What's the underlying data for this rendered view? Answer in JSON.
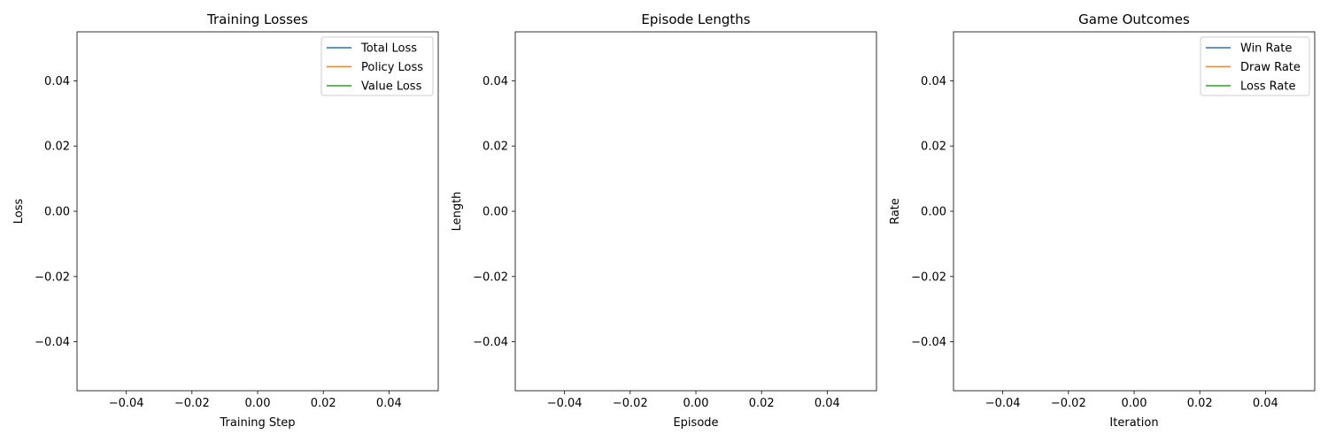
{
  "chart_data": [
    {
      "type": "line",
      "title": "Training Losses",
      "xlabel": "Training Step",
      "ylabel": "Loss",
      "xlim": [
        -0.055,
        0.055
      ],
      "ylim": [
        -0.055,
        0.055
      ],
      "xticks": [
        -0.04,
        -0.02,
        0.0,
        0.02,
        0.04
      ],
      "yticks": [
        -0.04,
        -0.02,
        0.0,
        0.02,
        0.04
      ],
      "xtick_labels": [
        "−0.04",
        "−0.02",
        "0.00",
        "0.02",
        "0.04"
      ],
      "ytick_labels": [
        "−0.04",
        "−0.02",
        "0.00",
        "0.02",
        "0.04"
      ],
      "grid": false,
      "legend_position": "top-right",
      "series": [
        {
          "name": "Total Loss",
          "color": "#1f77b4",
          "x": [],
          "y": []
        },
        {
          "name": "Policy Loss",
          "color": "#ff7f0e",
          "x": [],
          "y": []
        },
        {
          "name": "Value Loss",
          "color": "#2ca02c",
          "x": [],
          "y": []
        }
      ]
    },
    {
      "type": "line",
      "title": "Episode Lengths",
      "xlabel": "Episode",
      "ylabel": "Length",
      "xlim": [
        -0.055,
        0.055
      ],
      "ylim": [
        -0.055,
        0.055
      ],
      "xticks": [
        -0.04,
        -0.02,
        0.0,
        0.02,
        0.04
      ],
      "yticks": [
        -0.04,
        -0.02,
        0.0,
        0.02,
        0.04
      ],
      "xtick_labels": [
        "−0.04",
        "−0.02",
        "0.00",
        "0.02",
        "0.04"
      ],
      "ytick_labels": [
        "−0.04",
        "−0.02",
        "0.00",
        "0.02",
        "0.04"
      ],
      "grid": false,
      "legend_position": "none",
      "series": [
        {
          "color": "#1f77b4",
          "x": [],
          "y": []
        }
      ]
    },
    {
      "type": "line",
      "title": "Game Outcomes",
      "xlabel": "Iteration",
      "ylabel": "Rate",
      "xlim": [
        -0.055,
        0.055
      ],
      "ylim": [
        -0.055,
        0.055
      ],
      "xticks": [
        -0.04,
        -0.02,
        0.0,
        0.02,
        0.04
      ],
      "yticks": [
        -0.04,
        -0.02,
        0.0,
        0.02,
        0.04
      ],
      "xtick_labels": [
        "−0.04",
        "−0.02",
        "0.00",
        "0.02",
        "0.04"
      ],
      "ytick_labels": [
        "−0.04",
        "−0.02",
        "0.00",
        "0.02",
        "0.04"
      ],
      "grid": false,
      "legend_position": "top-right",
      "series": [
        {
          "name": "Win Rate",
          "color": "#1f77b4",
          "x": [],
          "y": []
        },
        {
          "name": "Draw Rate",
          "color": "#ff7f0e",
          "x": [],
          "y": []
        },
        {
          "name": "Loss Rate",
          "color": "#2ca02c",
          "x": [],
          "y": []
        }
      ]
    }
  ]
}
